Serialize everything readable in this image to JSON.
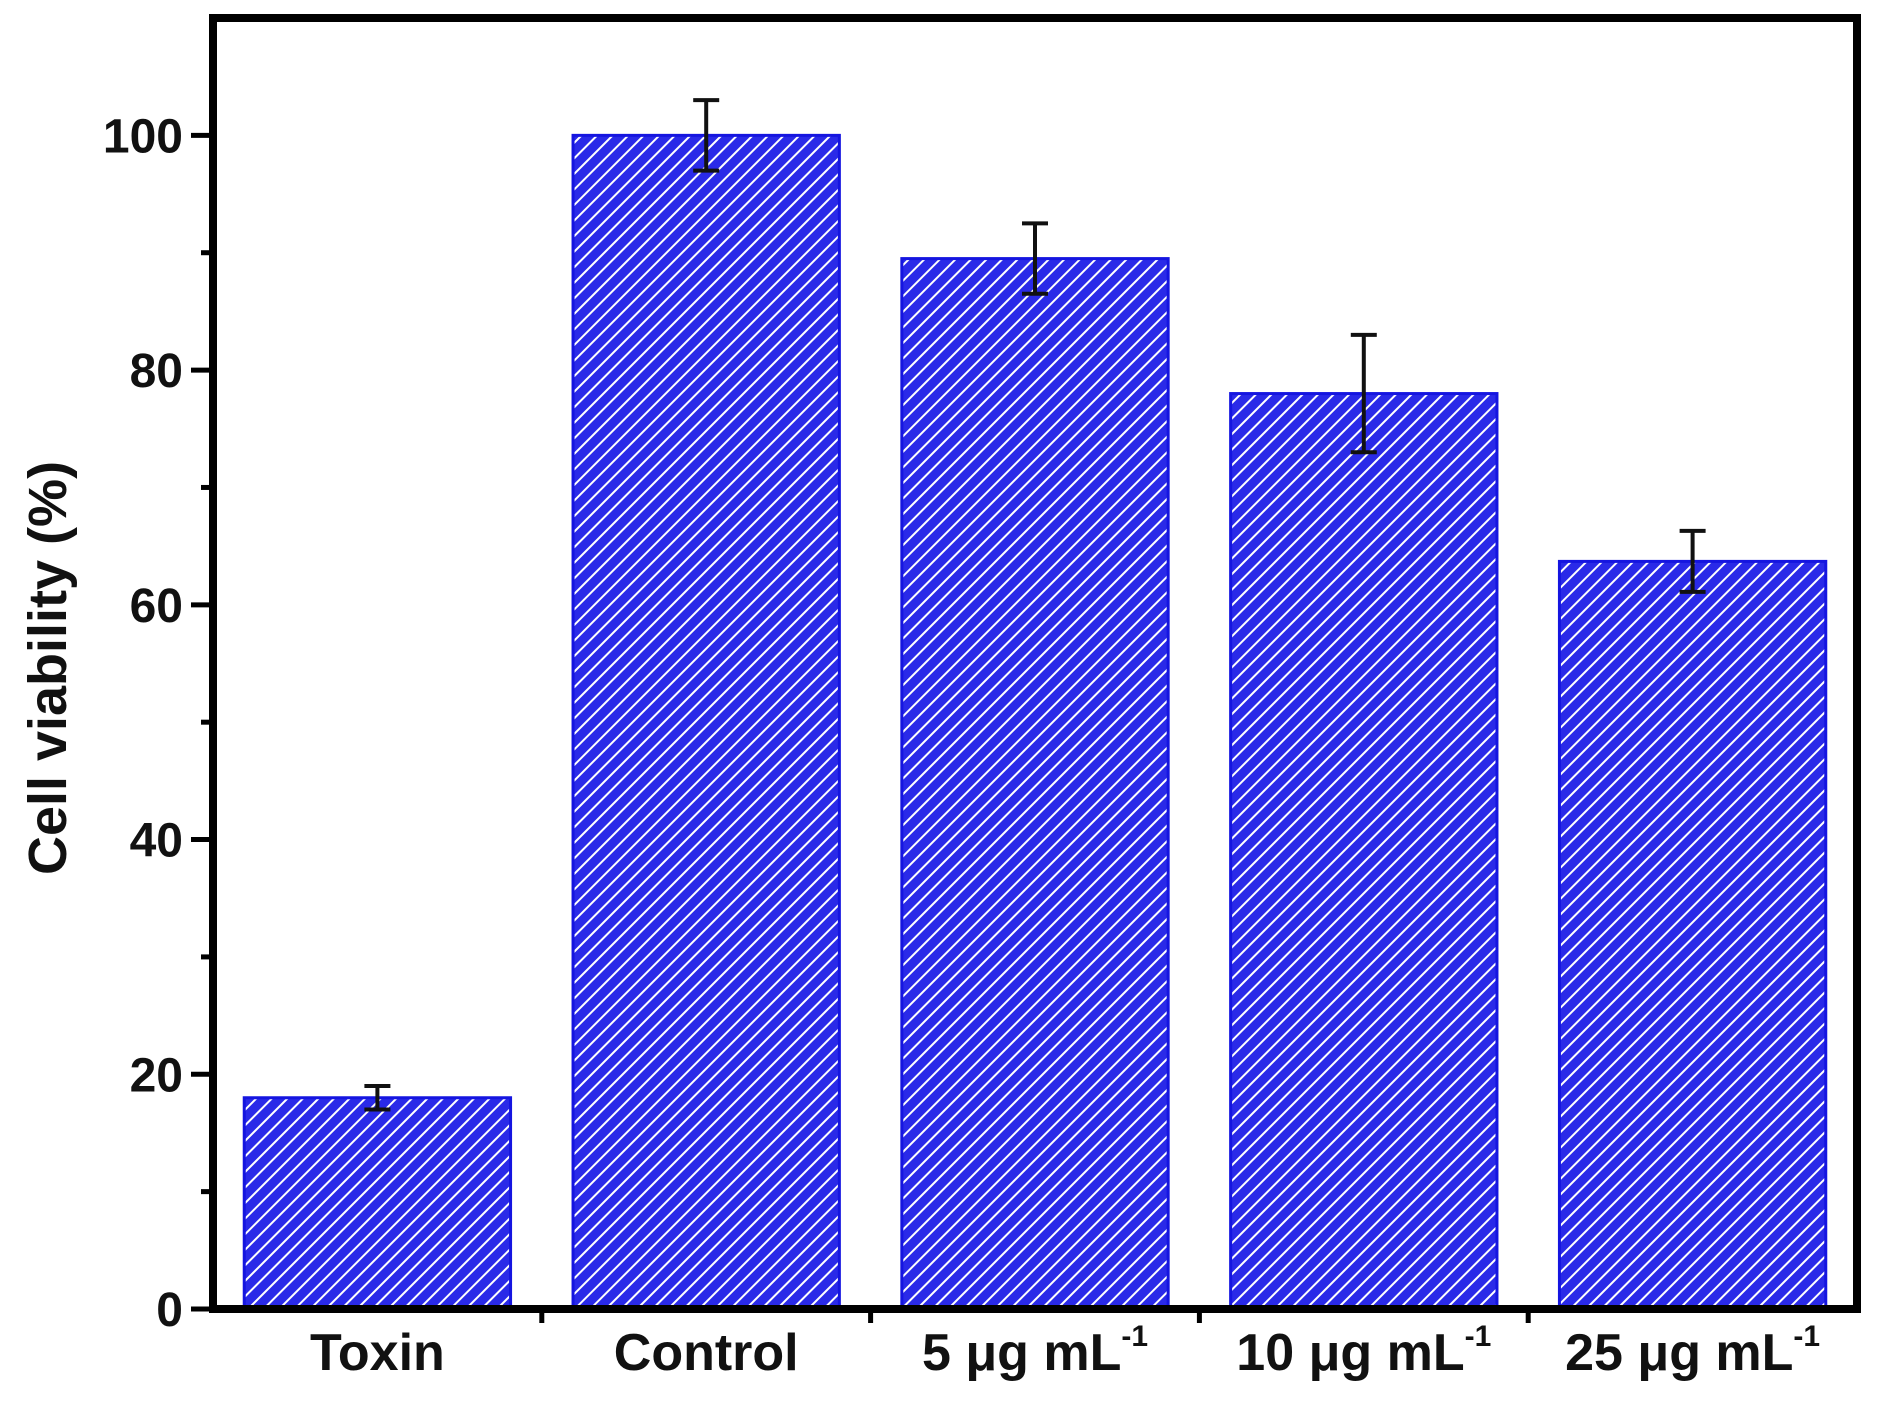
{
  "chart_data": {
    "type": "bar",
    "title": "",
    "xlabel": "",
    "ylabel": "Cell viability (%)",
    "ylim": [
      0,
      110
    ],
    "yticks": [
      0,
      20,
      40,
      60,
      80,
      100
    ],
    "ytick_labels": [
      "0",
      "20",
      "40",
      "60",
      "80",
      "100"
    ],
    "categories": [
      {
        "main": "Toxin",
        "sup": ""
      },
      {
        "main": "Control",
        "sup": ""
      },
      {
        "main": "5 μg mL",
        "sup": "-1"
      },
      {
        "main": "10 μg mL",
        "sup": "-1"
      },
      {
        "main": "25 μg mL",
        "sup": "-1"
      }
    ],
    "values": [
      18,
      100,
      89.5,
      78,
      63.7
    ],
    "errors": [
      1.0,
      3.0,
      3.0,
      5.0,
      2.6
    ],
    "grid": false,
    "colors": {
      "bar_fill": "#2a2ae8",
      "bar_hatch": "#ffffff",
      "bar_edge": "#1515e0",
      "axis": "#000000",
      "error_bar": "#111111"
    }
  }
}
